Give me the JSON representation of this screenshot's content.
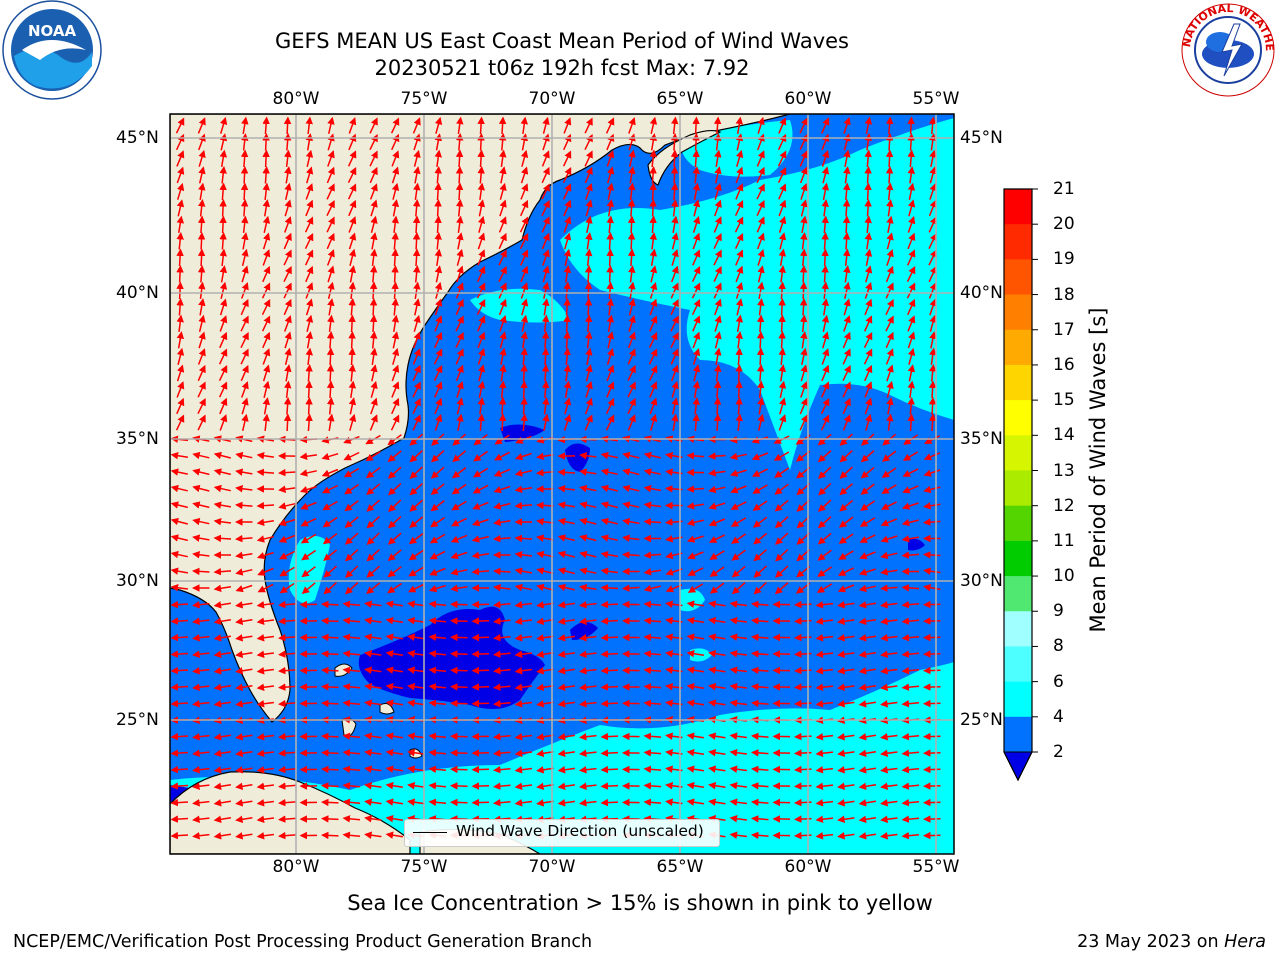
{
  "header": {
    "title_line1": "GEFS MEAN US East Coast Mean Period of Wind Waves",
    "title_line2": "20230521 t06z 192h fcst   Max: 7.92",
    "logo_left": "NOAA",
    "logo_right": "NATIONAL WEATHER SERVICE"
  },
  "map": {
    "lon_ticks": [
      "80°W",
      "75°W",
      "70°W",
      "65°W",
      "60°W",
      "55°W"
    ],
    "lat_ticks": [
      "45°N",
      "40°N",
      "35°N",
      "30°N",
      "25°N"
    ],
    "legend_label": "Wind Wave Direction (unscaled)",
    "colors": {
      "land": "#efedda",
      "water_low": "#0072fe",
      "water_mid": "#00ffff",
      "water_min": "#0000e6",
      "arrow": "#ff0000"
    }
  },
  "colorbar": {
    "label": "Mean Period of Wind Waves [s]",
    "ticks": [
      "21",
      "20",
      "19",
      "18",
      "17",
      "16",
      "15",
      "14",
      "13",
      "12",
      "11",
      "10",
      "9",
      "8",
      "6",
      "4",
      "2"
    ],
    "colors": [
      "#ff0000",
      "#ff2a00",
      "#ff5500",
      "#ff8000",
      "#ffaa00",
      "#ffd500",
      "#ffff00",
      "#d5f500",
      "#aaeb00",
      "#55d500",
      "#00cc00",
      "#50e870",
      "#a0ffff",
      "#4dffff",
      "#00ffff",
      "#0072fe"
    ]
  },
  "chart_data": {
    "type": "heatmap",
    "title": "GEFS MEAN US East Coast Mean Period of Wind Waves",
    "subtitle": "20230521 t06z 192h fcst   Max: 7.92",
    "xlabel": "",
    "ylabel": "",
    "colorbar_label": "Mean Period of Wind Waves [s]",
    "x_ticks": [
      "80°W",
      "75°W",
      "70°W",
      "65°W",
      "60°W",
      "55°W"
    ],
    "y_ticks": [
      "45°N",
      "40°N",
      "35°N",
      "30°N",
      "25°N"
    ],
    "colorbar_levels": [
      2,
      4,
      6,
      8,
      9,
      10,
      11,
      12,
      13,
      14,
      15,
      16,
      17,
      18,
      19,
      20,
      21
    ],
    "max": 7.92,
    "grid": true
  },
  "footer": {
    "caption": "Sea Ice Concentration > 15% is shown in pink to yellow",
    "left": "NCEP/EMC/Verification Post Processing Product Generation Branch",
    "right_date": "23 May 2023 on ",
    "right_host": "Hera"
  }
}
